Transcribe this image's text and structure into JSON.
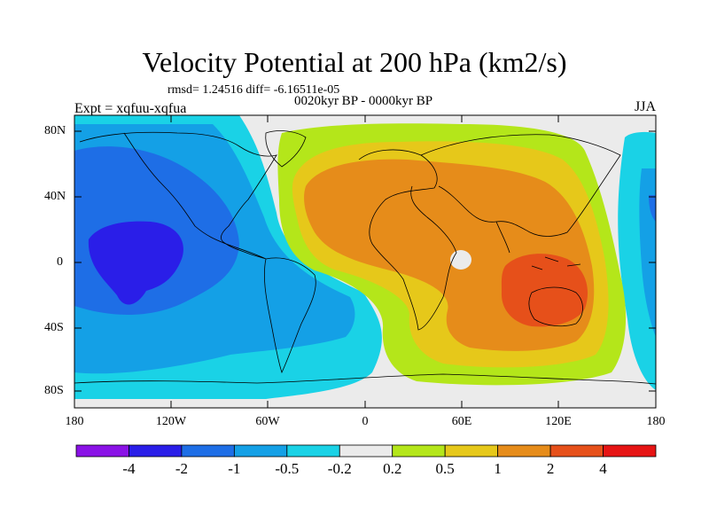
{
  "title": "Velocity Potential at 200 hPa (km2/s)",
  "stats_line": "rmsd= 1.24516 diff= -6.16511e-05",
  "period": "0020kyr BP - 0000kyr BP",
  "experiment": "Expt = xqfuu-xqfua",
  "season": "JJA",
  "axes": {
    "lat_ticks": [
      "80N",
      "40N",
      "0",
      "40S",
      "80S"
    ],
    "lon_ticks": [
      "180",
      "120W",
      "60W",
      "0",
      "60E",
      "120E",
      "180"
    ]
  },
  "colorbar": {
    "labels": [
      "-4",
      "-2",
      "-1",
      "-0.5",
      "-0.2",
      "0.2",
      "0.5",
      "1",
      "2",
      "4"
    ],
    "colors": [
      "#8a12e6",
      "#2a1ee8",
      "#1e6ee6",
      "#14a0e6",
      "#1ad2e6",
      "#ebebeb",
      "#b4e61a",
      "#e6c81a",
      "#e68c1a",
      "#e6501a",
      "#e61414"
    ]
  },
  "colors": {
    "neutral": "#ebebeb",
    "coast": "#000000"
  }
}
